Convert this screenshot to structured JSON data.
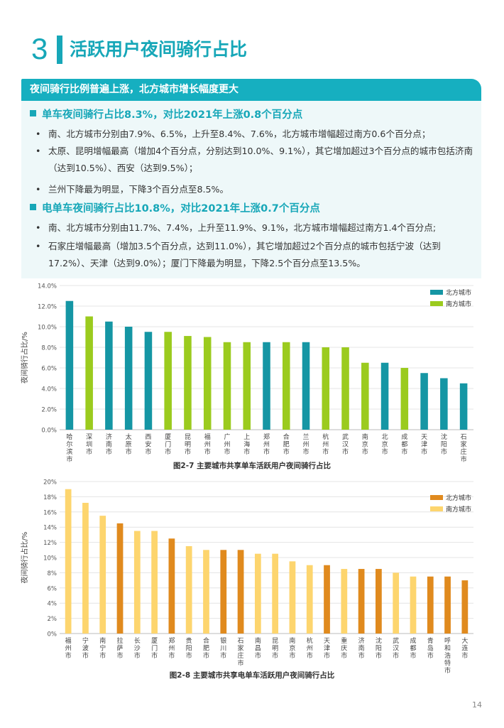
{
  "section": {
    "number": "3",
    "title": "活跃用户夜间骑行占比"
  },
  "banner": "夜间骑行比例普遍上涨，北方城市增长幅度更大",
  "bike_section": {
    "heading": "单车夜间骑行占比8.3%，对比2021年上涨0.8个百分点",
    "bullets": [
      "南、北方城市分别由7.9%、6.5%，上升至8.4%、7.6%，北方城市增幅超过南方0.6个百分点；",
      "太原、昆明增幅最高（增加4个百分点，分别达到10.0%、9.1%），其它增加超过3个百分点的城市包括济南（达到10.5%）、西安（达到9.5%）；",
      "兰州下降最为明显，下降3个百分点至8.5%。"
    ]
  },
  "ebike_section": {
    "heading": "电单车夜间骑行占比10.8%，对比2021年上涨0.7个百分点",
    "bullets": [
      "南、北方城市分别由11.7%、7.4%，上升至11.9%、9.1%，北方城市增幅超过南方1.4个百分点;",
      "石家庄增幅最高（增加3.5个百分点，达到11.0%），其它增加超过2个百分点的城市包括宁波（达到17.2%）、天津（达到9.0%）；厦门下降最为明显，下降2.5个百分点至13.5%。"
    ]
  },
  "page_number": "14",
  "chart_data": [
    {
      "type": "bar",
      "title": "图2-7 主要城市共享单车活跃用户夜间骑行占比",
      "ylabel": "夜间骑行占比/%",
      "xlabel": "",
      "ylim": [
        0,
        14
      ],
      "yticks": [
        "0.0%",
        "2.0%",
        "4.0%",
        "6.0%",
        "8.0%",
        "10.0%",
        "12.0%",
        "14.0%"
      ],
      "legend": [
        {
          "name": "北方城市",
          "color": "#1596a4"
        },
        {
          "name": "南方城市",
          "color": "#9bcb1e"
        }
      ],
      "legend_position": "top-right",
      "grid": true,
      "categories": [
        "哈尔滨市",
        "深圳市",
        "济南市",
        "太原市",
        "西安市",
        "厦门市",
        "昆明市",
        "福州市",
        "广州市",
        "上海市",
        "郑州市",
        "合肥市",
        "兰州市",
        "杭州市",
        "武汉市",
        "南京市",
        "北京市",
        "成都市",
        "天津市",
        "沈阳市",
        "石家庄市"
      ],
      "values": [
        12.5,
        11.0,
        10.5,
        10.0,
        9.5,
        9.5,
        9.1,
        9.0,
        8.5,
        8.5,
        8.5,
        8.5,
        8.5,
        8.0,
        8.0,
        6.5,
        6.5,
        6.0,
        5.5,
        5.0,
        4.5
      ],
      "groups": [
        "北方城市",
        "南方城市",
        "北方城市",
        "北方城市",
        "北方城市",
        "南方城市",
        "南方城市",
        "南方城市",
        "南方城市",
        "南方城市",
        "北方城市",
        "南方城市",
        "北方城市",
        "南方城市",
        "南方城市",
        "南方城市",
        "北方城市",
        "南方城市",
        "北方城市",
        "北方城市",
        "北方城市"
      ]
    },
    {
      "type": "bar",
      "title": "图2-8 主要城市共享电单车活跃用户夜间骑行占比",
      "ylabel": "夜间骑行占比/%",
      "xlabel": "",
      "ylim": [
        0,
        20
      ],
      "yticks": [
        "0%",
        "2%",
        "4%",
        "6%",
        "8%",
        "10%",
        "12%",
        "14%",
        "16%",
        "18%",
        "20%"
      ],
      "legend": [
        {
          "name": "北方城市",
          "color": "#e08a1e"
        },
        {
          "name": "南方城市",
          "color": "#fdd56e"
        }
      ],
      "legend_position": "top-right",
      "grid": true,
      "categories": [
        "福州市",
        "宁波市",
        "南宁市",
        "拉萨市",
        "长沙市",
        "厦门市",
        "郑州市",
        "贵阳市",
        "合肥市",
        "银川市",
        "石家庄市",
        "南昌市",
        "昆明市",
        "南京市",
        "杭州市",
        "天津市",
        "重庆市",
        "济南市",
        "沈阳市",
        "武汉市",
        "成都市",
        "青岛市",
        "呼和浩特市",
        "大连市"
      ],
      "values": [
        19.0,
        17.2,
        15.5,
        14.5,
        13.5,
        13.5,
        12.5,
        11.5,
        11.0,
        11.0,
        11.0,
        10.5,
        10.5,
        9.5,
        9.0,
        9.0,
        8.5,
        8.5,
        8.5,
        8.0,
        7.5,
        7.5,
        7.5,
        7.0
      ],
      "groups": [
        "南方城市",
        "南方城市",
        "南方城市",
        "北方城市",
        "南方城市",
        "南方城市",
        "北方城市",
        "南方城市",
        "南方城市",
        "北方城市",
        "北方城市",
        "南方城市",
        "南方城市",
        "南方城市",
        "南方城市",
        "北方城市",
        "南方城市",
        "北方城市",
        "北方城市",
        "南方城市",
        "南方城市",
        "北方城市",
        "北方城市",
        "北方城市"
      ]
    }
  ]
}
